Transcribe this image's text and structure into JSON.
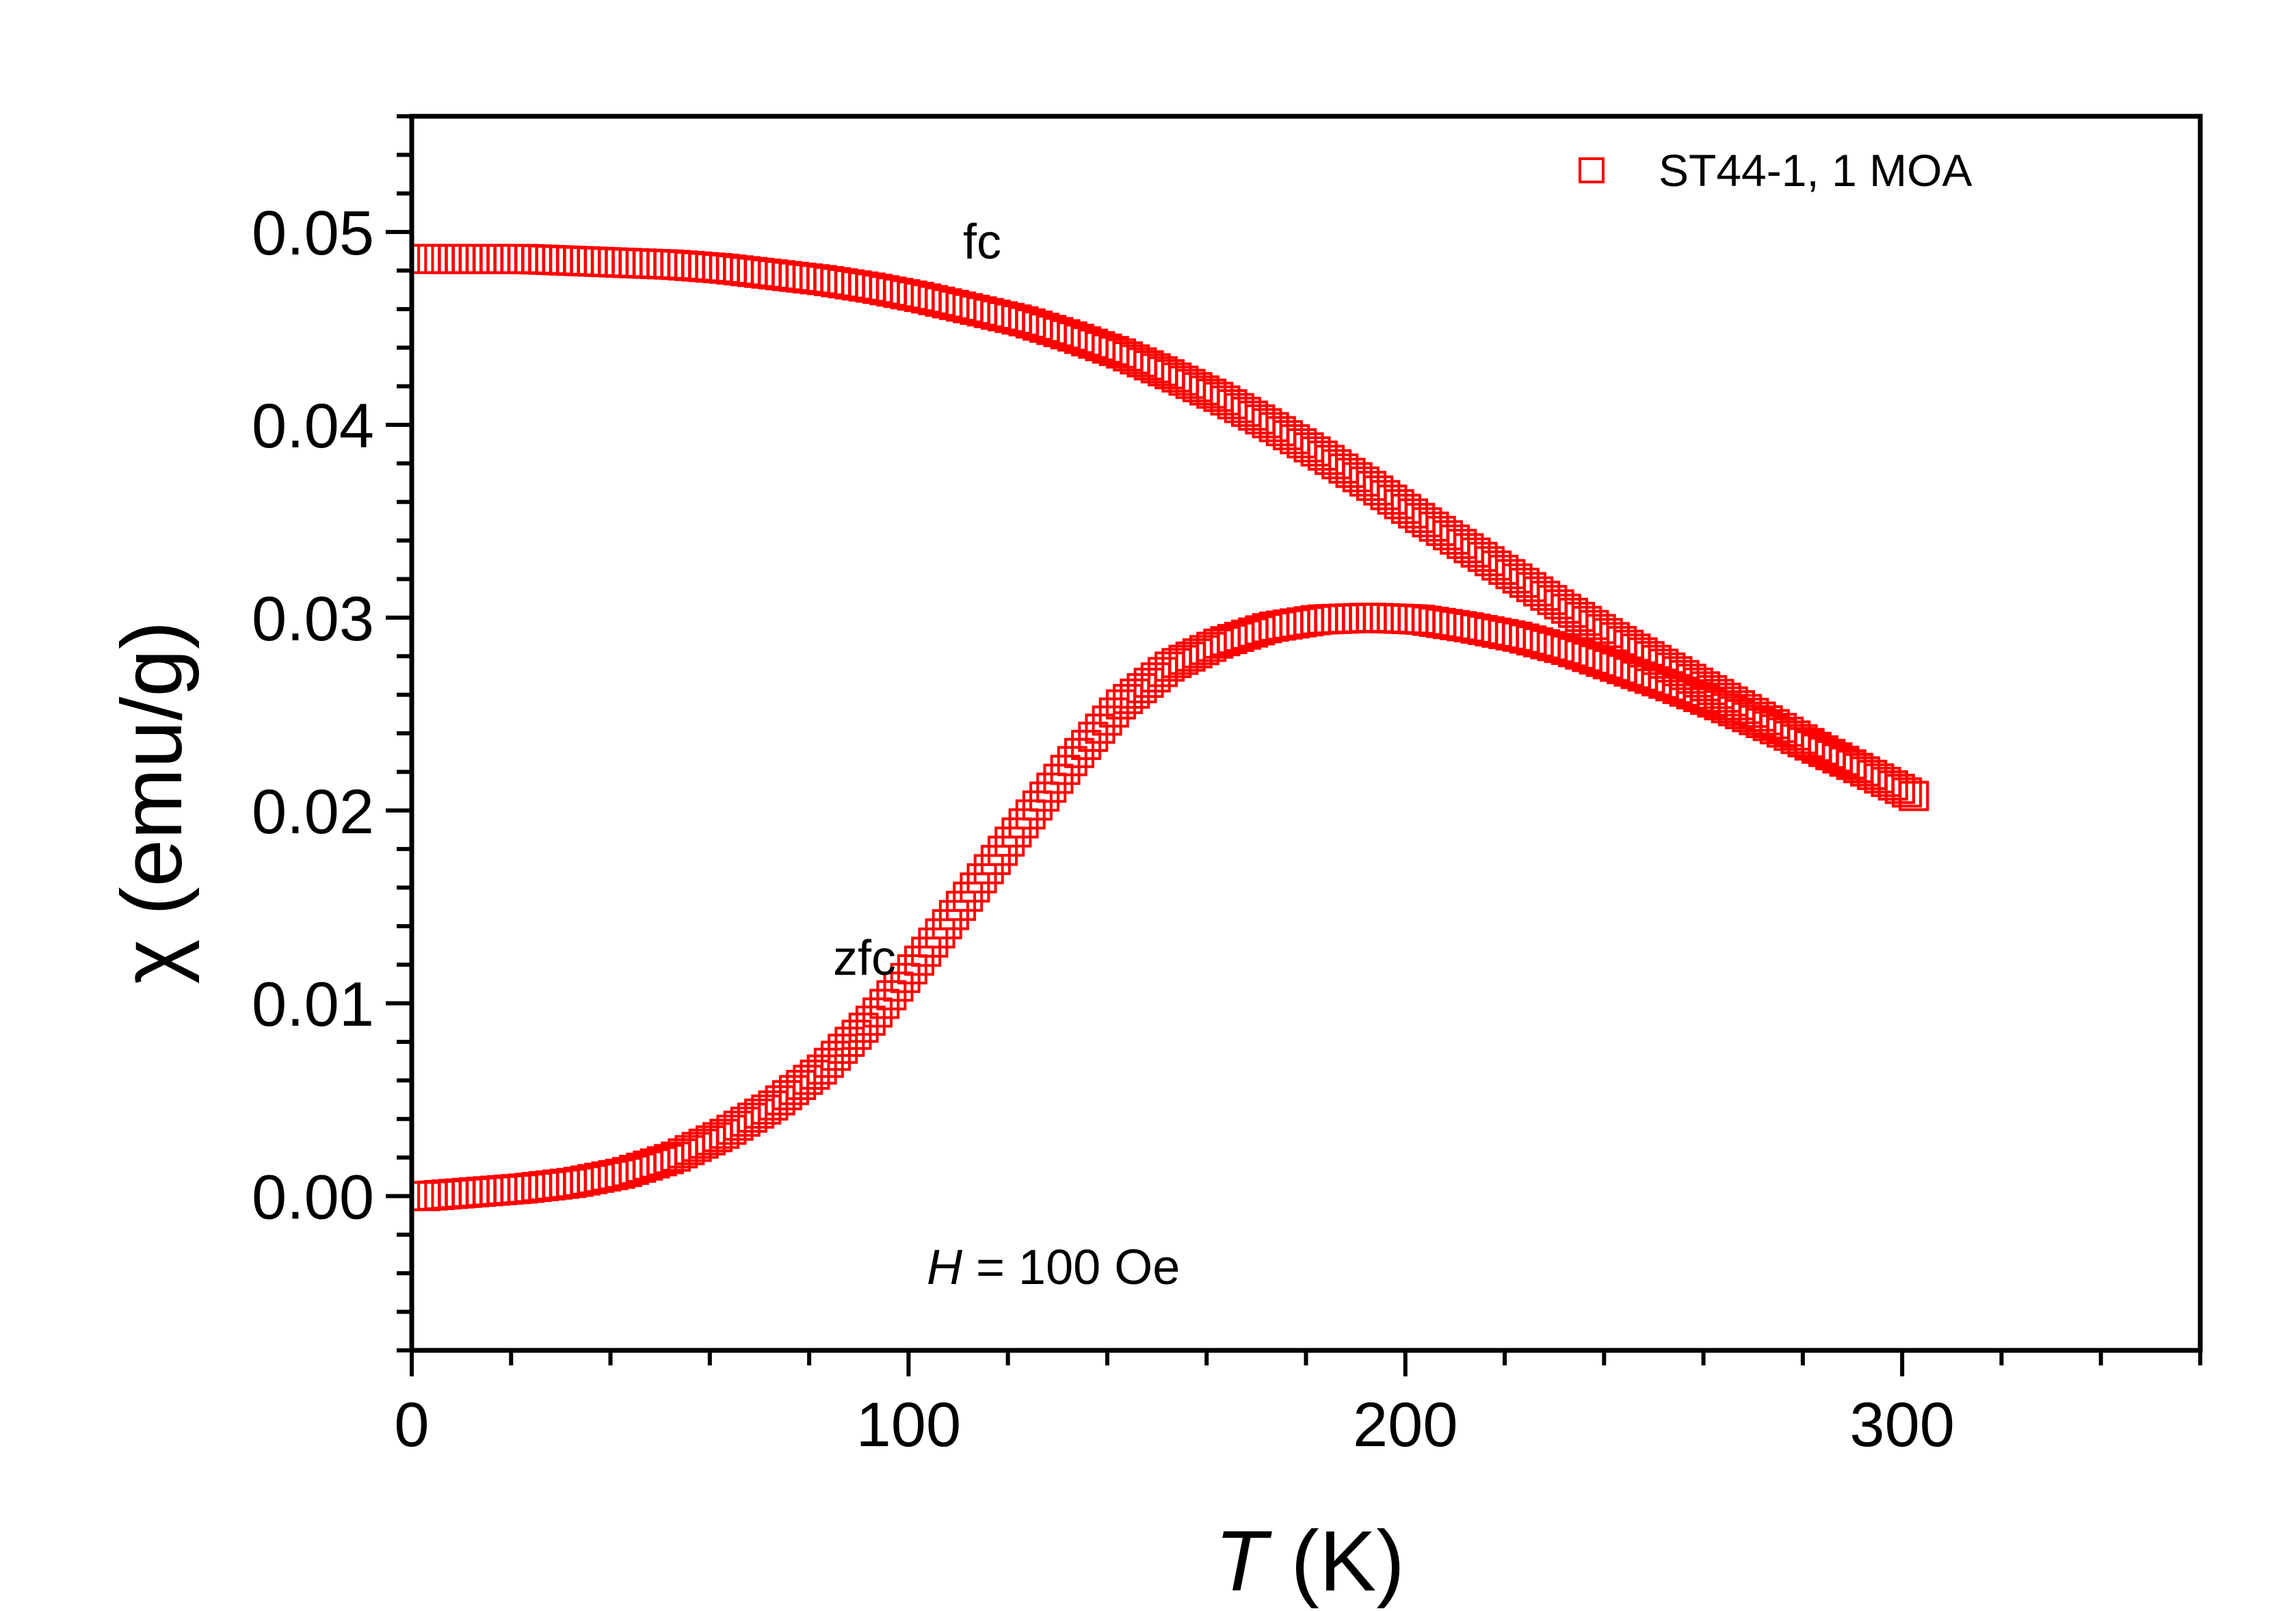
{
  "chart_data": {
    "type": "scatter",
    "title": "",
    "xlabel_var": "T",
    "xlabel_unit": " (K)",
    "ylabel": "χ (emu/g)",
    "xlim": [
      0,
      360
    ],
    "ylim": [
      -0.008,
      0.056
    ],
    "x_ticks": [
      0,
      100,
      200,
      300
    ],
    "x_tick_labels": [
      "0",
      "100",
      "200",
      "300"
    ],
    "x_minor_step": 20,
    "y_ticks": [
      0.0,
      0.01,
      0.02,
      0.03,
      0.04,
      0.05
    ],
    "y_tick_labels": [
      "0.00",
      "0.01",
      "0.02",
      "0.03",
      "0.04",
      "0.05"
    ],
    "y_minor_step": 0.002,
    "grid": false,
    "legend": {
      "position": "top-right",
      "label": "ST44-1, 1 MOA"
    },
    "marker_color": "#ff0000",
    "marker": "open-square",
    "x": [
      0,
      10,
      20,
      30,
      40,
      50,
      60,
      70,
      80,
      90,
      100,
      110,
      120,
      130,
      140,
      150,
      160,
      170,
      180,
      190,
      200,
      210,
      220,
      230,
      240,
      250,
      260,
      270,
      280,
      290,
      300
    ],
    "series": [
      {
        "name": "fc",
        "values": [
          0.0486,
          0.0486,
          0.0486,
          0.0485,
          0.0484,
          0.0483,
          0.0481,
          0.0478,
          0.0475,
          0.0471,
          0.0466,
          0.046,
          0.0454,
          0.0446,
          0.0437,
          0.0426,
          0.0414,
          0.04,
          0.0385,
          0.0369,
          0.0352,
          0.0336,
          0.032,
          0.0304,
          0.0289,
          0.0275,
          0.0261,
          0.0247,
          0.0233,
          0.022,
          0.0207
        ]
      },
      {
        "name": "zfc",
        "values": [
          0.0,
          0.0002,
          0.0004,
          0.0007,
          0.0012,
          0.002,
          0.0032,
          0.0047,
          0.0066,
          0.0092,
          0.0124,
          0.0158,
          0.0192,
          0.0225,
          0.0255,
          0.0275,
          0.0287,
          0.0295,
          0.0299,
          0.03,
          0.0299,
          0.0295,
          0.029,
          0.0283,
          0.0274,
          0.0265,
          0.0255,
          0.0244,
          0.0232,
          0.022,
          0.0207
        ]
      }
    ],
    "annotations": {
      "fc": "fc",
      "zfc": "zfc",
      "field_var": "H",
      "field_value": " = 100 Oe"
    }
  }
}
